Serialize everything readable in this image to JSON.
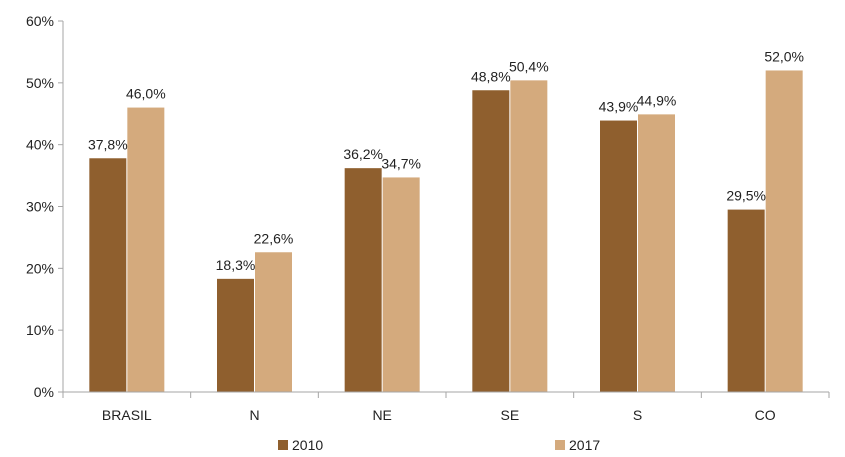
{
  "chart_data": {
    "type": "bar",
    "categories": [
      "BRASIL",
      "N",
      "NE",
      "SE",
      "S",
      "CO"
    ],
    "series": [
      {
        "name": "2010",
        "values": [
          37.8,
          18.3,
          36.2,
          48.8,
          43.9,
          29.5
        ],
        "labels": [
          "37,8%",
          "18,3%",
          "36,2%",
          "48,8%",
          "43,9%",
          "29,5%"
        ],
        "color": "#8f5f2e"
      },
      {
        "name": "2017",
        "values": [
          46.0,
          22.6,
          34.7,
          50.4,
          44.9,
          52.0
        ],
        "labels": [
          "46,0%",
          "22,6%",
          "34,7%",
          "50,4%",
          "44,9%",
          "52,0%"
        ],
        "color": "#d4aa7d"
      }
    ],
    "yticks": [
      0,
      10,
      20,
      30,
      40,
      50,
      60
    ],
    "ytick_labels": [
      "0%",
      "10%",
      "20%",
      "30%",
      "40%",
      "50%",
      "60%"
    ],
    "ylim": [
      0,
      60
    ],
    "grid": false,
    "legend_position": "bottom",
    "title": "",
    "xlabel": "",
    "ylabel": ""
  }
}
